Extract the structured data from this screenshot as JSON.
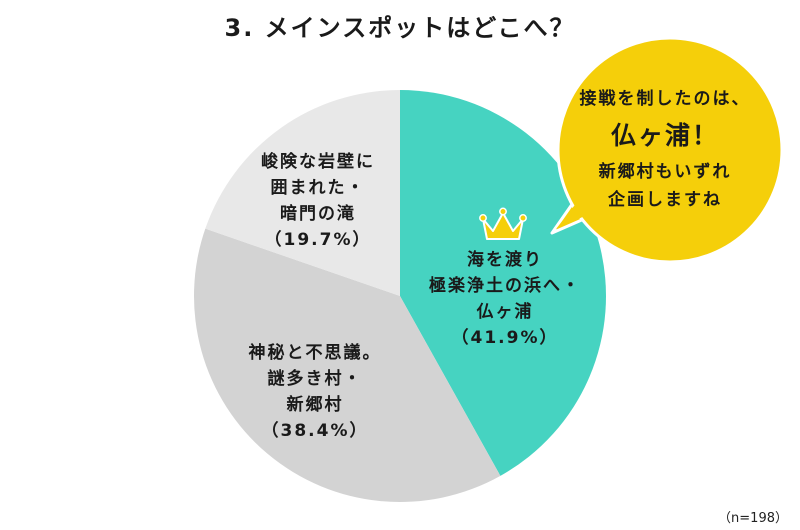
{
  "title": "3. メインスポットはどこへ？",
  "sample_size": "（n=198）",
  "colors": {
    "teal": "#46d3c1",
    "mid_gray": "#d3d3d3",
    "light_gray": "#e8e8e8",
    "bubble_yellow": "#f5cf0a",
    "crown": "#f5cf0a"
  },
  "slices": [
    {
      "lines": [
        "海を渡り",
        "極楽浄土の浜へ・",
        "仏ヶ浦"
      ],
      "pct": "（41.9%）"
    },
    {
      "lines": [
        "神秘と不思議。",
        "謎多き村・",
        "新郷村"
      ],
      "pct": "（38.4%）"
    },
    {
      "lines": [
        "峻険な岩壁に",
        "囲まれた・",
        "暗門の滝"
      ],
      "pct": "（19.7%）"
    }
  ],
  "bubble": {
    "line1": "接戦を制したのは、",
    "highlight": "仏ヶ浦！",
    "line3": "新郷村もいずれ",
    "line4": "企画しますね"
  },
  "chart_data": {
    "type": "pie",
    "title": "3. メインスポットはどこへ？",
    "categories": [
      "海を渡り極楽浄土の浜へ・仏ヶ浦",
      "神秘と不思議。謎多き村・新郷村",
      "峻険な岩壁に囲まれた・暗門の滝"
    ],
    "values": [
      41.9,
      38.4,
      19.7
    ],
    "unit": "%",
    "n": 198,
    "colors": [
      "#46d3c1",
      "#d3d3d3",
      "#e8e8e8"
    ],
    "start_angle": "12 o'clock, clockwise",
    "annotations": [
      "接戦を制したのは、仏ヶ浦！新郷村もいずれ企画しますね",
      "crown icon on top slice (仏ヶ浦)"
    ]
  }
}
